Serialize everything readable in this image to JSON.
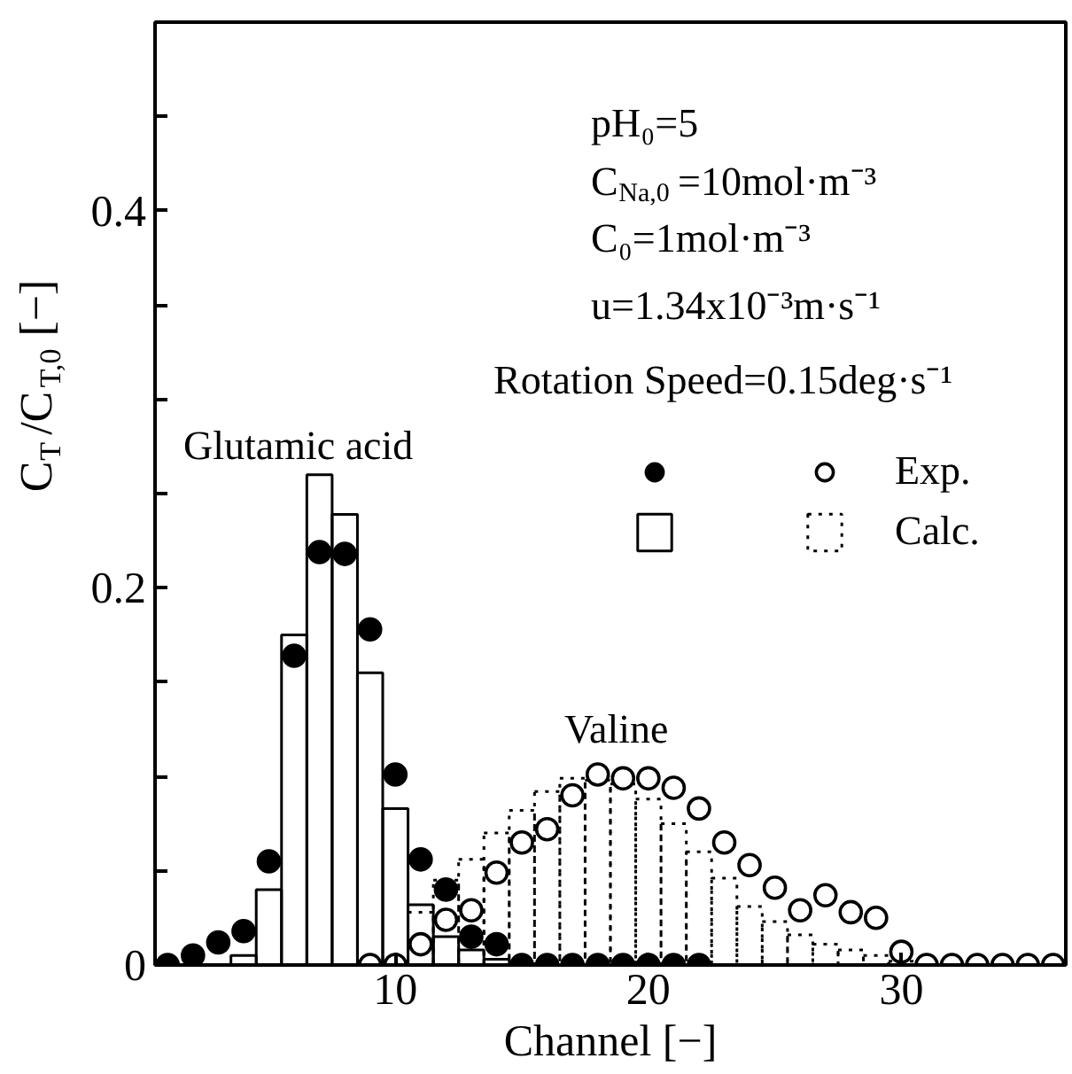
{
  "chart_data": {
    "type": "bar",
    "xlabel": "Channel [−]",
    "ylabel": "C$_{T}$/C$_{T,0}$ [−]",
    "xlim": [
      0.5,
      36.5
    ],
    "xticks": [
      10,
      20,
      30
    ],
    "ylim": [
      0,
      0.5
    ],
    "yticks": [
      0,
      {
        "value": 0.05,
        "label": null
      },
      {
        "value": 0.1,
        "label": null
      },
      {
        "value": 0.15,
        "label": null
      },
      0.2,
      {
        "value": 0.25,
        "label": null
      },
      {
        "value": 0.3,
        "label": null
      },
      {
        "value": 0.35,
        "label": null
      },
      0.4,
      {
        "value": 0.45,
        "label": null
      },
      {
        "value": 0.5,
        "label": null
      }
    ],
    "grid": false,
    "legend": "right",
    "annotations": [
      "Glutamic acid",
      "Valine",
      "pH₀=5",
      "C$_{Na,0}$=10mol·m⁻³",
      "C₀=1mol·m⁻³",
      "u=1.34x10⁻³m·s⁻¹",
      "Rotation Speed=0.15deg·s⁻¹"
    ],
    "series": [
      {
        "name": "Calc.",
        "color": "#000000",
        "line_style": "dotted",
        "x": [
          11,
          12,
          13,
          14,
          15,
          16,
          17,
          18,
          19,
          20,
          21,
          22,
          23,
          24,
          25,
          26,
          27,
          28,
          29,
          30
        ],
        "values": [
          0.028,
          0.045,
          0.056,
          0.07,
          0.082,
          0.092,
          0.099,
          0.098,
          0.096,
          0.088,
          0.075,
          0.06,
          0.046,
          0.031,
          0.023,
          0.016,
          0.011,
          0.008,
          0.005,
          0.002
        ]
      },
      {
        "color": "#000000",
        "line_style": "solid",
        "x": [
          4,
          5,
          6,
          7,
          8,
          9,
          10,
          11,
          12,
          13,
          14
        ],
        "values": [
          0.005,
          0.04,
          0.175,
          0.26,
          0.239,
          0.155,
          0.083,
          0.032,
          0.015,
          0.008,
          0.003
        ]
      },
      {
        "type": "scatter",
        "color": "#000000",
        "marker": "circle",
        "x": [
          1,
          2,
          3,
          4,
          5,
          6,
          7,
          8,
          9,
          10,
          11,
          12,
          13,
          14,
          15,
          16,
          17,
          18,
          19,
          20,
          21,
          22
        ],
        "values": [
          0,
          0.005,
          0.012,
          0.018,
          0.055,
          0.164,
          0.219,
          0.218,
          0.178,
          0.101,
          0.056,
          0.04,
          0.015,
          0.011,
          0,
          0,
          0,
          0,
          0,
          0,
          0,
          0
        ]
      },
      {
        "type": "scatter",
        "name": "Exp.",
        "color": "#000000",
        "marker": "circle",
        "x": [
          9,
          10,
          11,
          12,
          13,
          14,
          15,
          16,
          17,
          18,
          19,
          20,
          21,
          22,
          23,
          24,
          25,
          26,
          27,
          28,
          29,
          30,
          31,
          32,
          33,
          34,
          35,
          36
        ],
        "values": [
          0,
          0,
          0.011,
          0.024,
          0.029,
          0.049,
          0.065,
          0.072,
          0.09,
          0.101,
          0.099,
          0.099,
          0.094,
          0.083,
          0.065,
          0.053,
          0.041,
          0.029,
          0.037,
          0.028,
          0.025,
          0.007,
          0,
          0,
          0,
          0,
          0,
          0
        ]
      }
    ]
  }
}
